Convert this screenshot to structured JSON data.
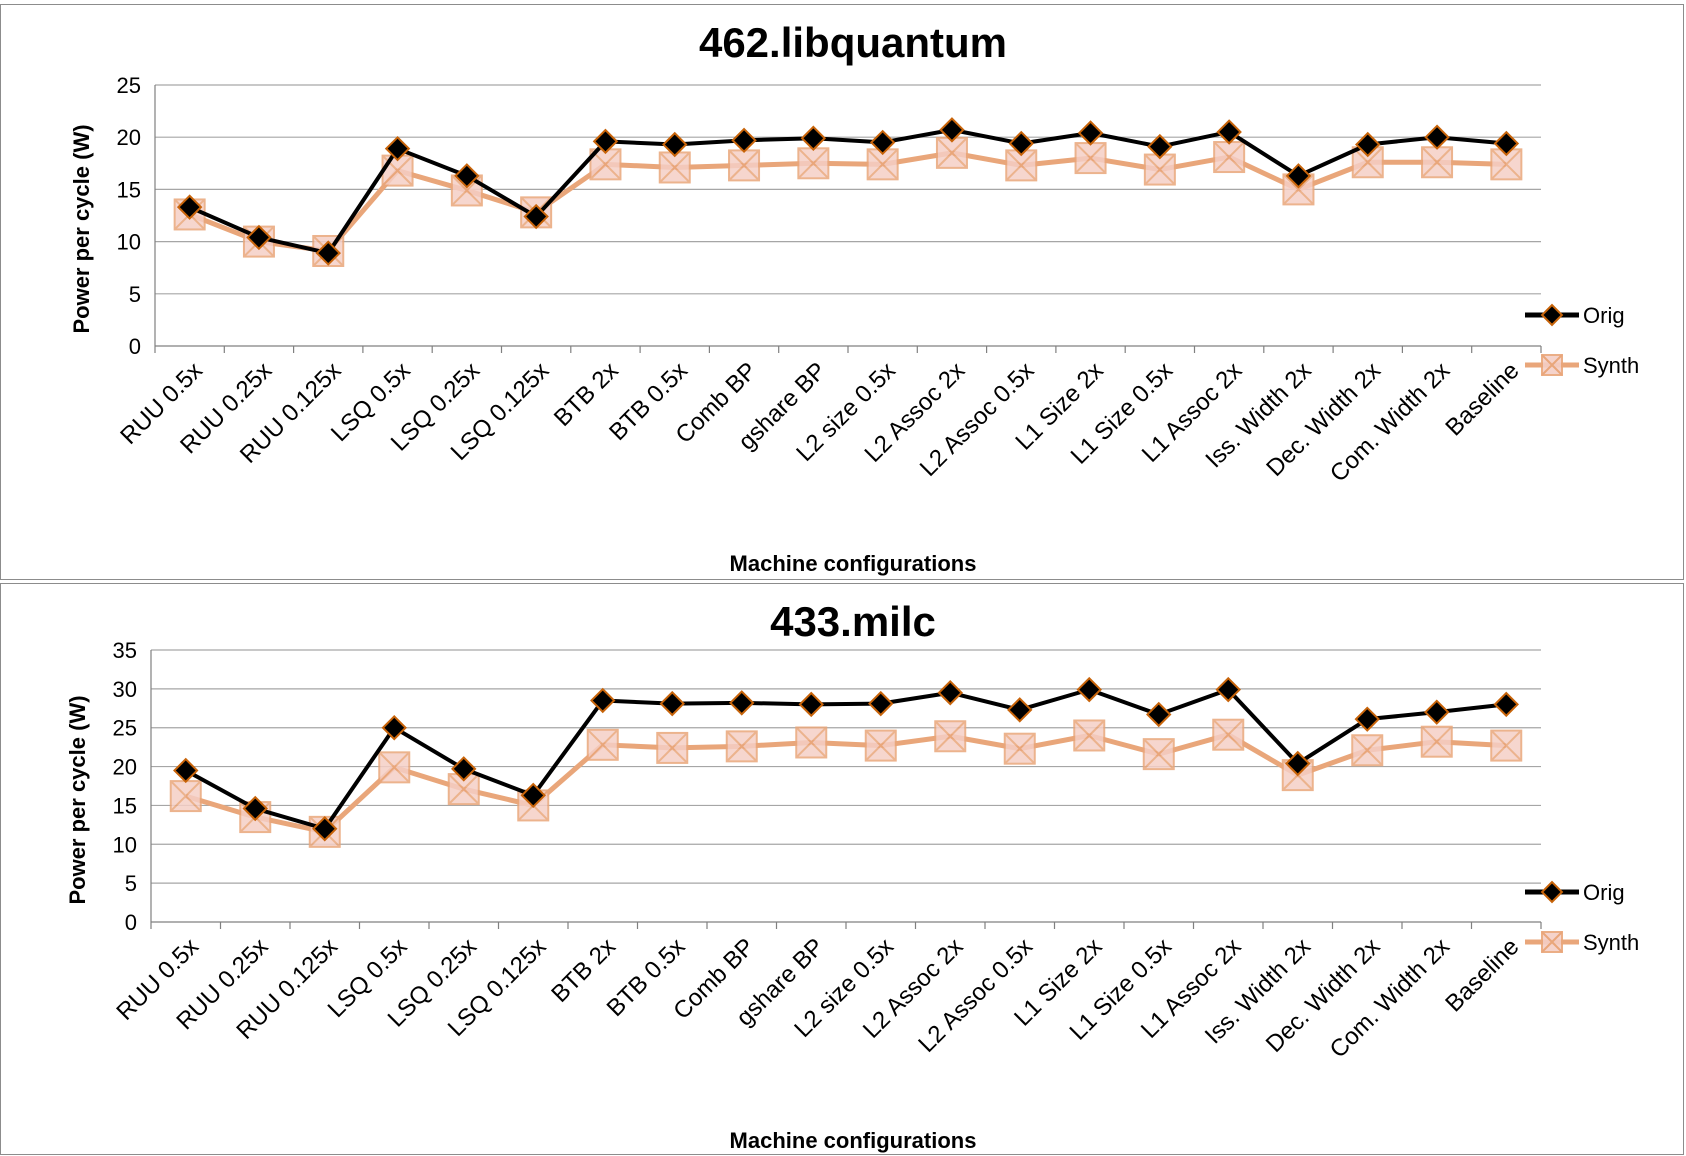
{
  "colors": {
    "orig": "#000000",
    "orig_marker_edge": "#c8640a",
    "synth": "#e9a67a",
    "synth_marker_fill": "#f5cfc6",
    "grid": "#a6a6a6"
  },
  "legend": {
    "orig": "Orig",
    "synth": "Synth"
  },
  "chart_data": [
    {
      "type": "line",
      "title": "462.libquantum",
      "xlabel": "Machine configurations",
      "ylabel": "Power per cycle (W)",
      "ylim": [
        0,
        25
      ],
      "yticks": [
        0,
        5,
        10,
        15,
        20,
        25
      ],
      "grid": true,
      "legend_position": "right",
      "categories": [
        "RUU 0.5x",
        "RUU 0.25x",
        "RUU 0.125x",
        "LSQ 0.5x",
        "LSQ 0.25x",
        "LSQ 0.125x",
        "BTB 2x",
        "BTB 0.5x",
        "Comb BP",
        "gshare BP",
        "L2 size 0.5x",
        "L2 Assoc 2x",
        "L2 Assoc 0.5x",
        "L1 Size 2x",
        "L1 Size 0.5x",
        "L1 Assoc 2x",
        "Iss. Width 2x",
        "Dec. Width 2x",
        "Com. Width 2x",
        "Baseline"
      ],
      "series": [
        {
          "name": "Orig",
          "values": [
            13.3,
            10.4,
            8.9,
            18.9,
            16.3,
            12.4,
            19.6,
            19.3,
            19.7,
            19.9,
            19.5,
            20.7,
            19.4,
            20.4,
            19.1,
            20.5,
            16.3,
            19.3,
            20.0,
            19.4
          ]
        },
        {
          "name": "Synth",
          "values": [
            12.6,
            10.0,
            9.1,
            16.8,
            14.9,
            12.8,
            17.4,
            17.1,
            17.3,
            17.5,
            17.4,
            18.5,
            17.3,
            18.0,
            16.9,
            18.1,
            15.0,
            17.6,
            17.6,
            17.4
          ]
        }
      ]
    },
    {
      "type": "line",
      "title": "433.milc",
      "xlabel": "Machine configurations",
      "ylabel": "Power per cycle (W)",
      "ylim": [
        0,
        35
      ],
      "yticks": [
        0,
        5,
        10,
        15,
        20,
        25,
        30,
        35
      ],
      "grid": true,
      "legend_position": "right",
      "categories": [
        "RUU 0.5x",
        "RUU 0.25x",
        "RUU 0.125x",
        "LSQ 0.5x",
        "LSQ 0.25x",
        "LSQ 0.125x",
        "BTB 2x",
        "BTB 0.5x",
        "Comb BP",
        "gshare BP",
        "L2 size 0.5x",
        "L2 Assoc 2x",
        "L2 Assoc 0.5x",
        "L1 Size 2x",
        "L1 Size 0.5x",
        "L1 Assoc 2x",
        "Iss. Width 2x",
        "Dec. Width 2x",
        "Com. Width 2x",
        "Baseline"
      ],
      "series": [
        {
          "name": "Orig",
          "values": [
            19.5,
            14.6,
            12.0,
            25.0,
            19.7,
            16.3,
            28.5,
            28.1,
            28.2,
            28.0,
            28.1,
            29.5,
            27.3,
            29.9,
            26.7,
            29.9,
            20.4,
            26.1,
            27.0,
            28.0
          ]
        },
        {
          "name": "Synth",
          "values": [
            16.2,
            13.5,
            11.6,
            19.9,
            17.1,
            15.0,
            22.8,
            22.4,
            22.6,
            23.1,
            22.7,
            23.9,
            22.3,
            24.0,
            21.6,
            24.1,
            18.9,
            22.1,
            23.2,
            22.7
          ]
        }
      ]
    }
  ]
}
